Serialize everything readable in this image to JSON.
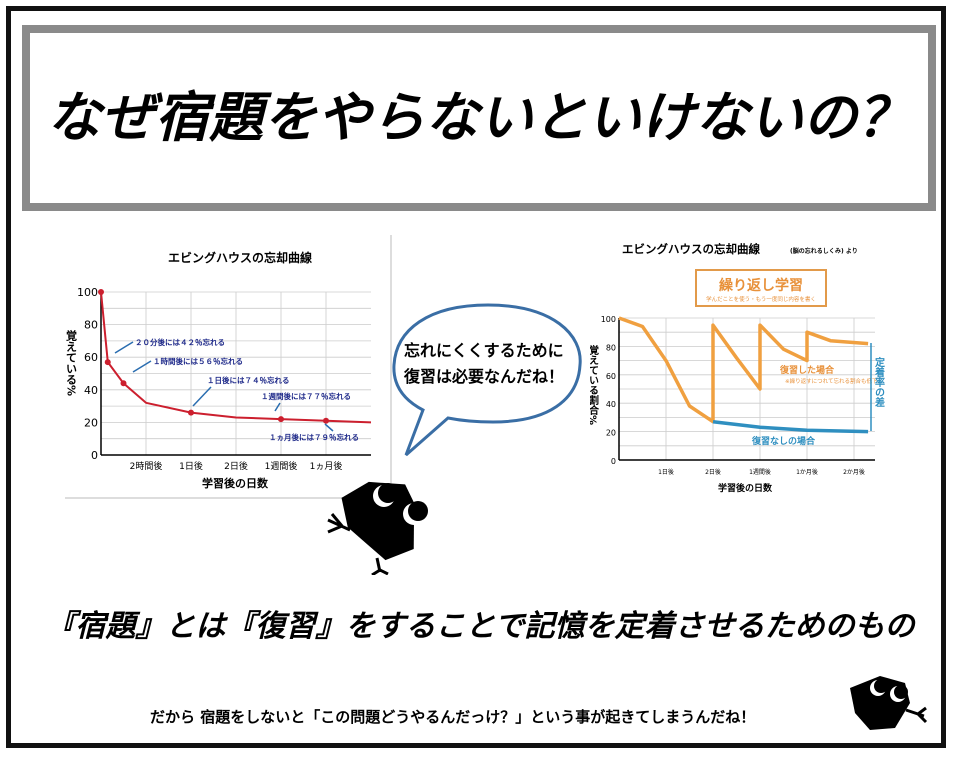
{
  "title": "なぜ宿題をやらないといけないの？",
  "speech_bubble": {
    "line1": "忘れにくくするために",
    "line2": "復習は必要なんだね！",
    "border_color": "#3a6ea5"
  },
  "heading": "『宿題』とは『復習』をすることで記憶を定着させるためのもの",
  "subtext": "だから 宿題をしないと「この問題どうやるんだっけ？」という事が起きてしまうんだね！",
  "chart_data": [
    {
      "type": "line",
      "title": "エビングハウスの忘却曲線",
      "xlabel": "学習後の日数",
      "ylabel": "覚えている%",
      "categories": [
        "2時間後",
        "1日後",
        "2日後",
        "1週間後",
        "1ヵ月後"
      ],
      "ylim": [
        0,
        100
      ],
      "yticks": [
        0,
        20,
        40,
        60,
        80,
        100
      ],
      "grid": true,
      "line_color": "#cc1f2e",
      "series": [
        {
          "points": [
            [
              0,
              100
            ],
            [
              0.15,
              57
            ],
            [
              0.5,
              44
            ],
            [
              1,
              32
            ],
            [
              2,
              26
            ],
            [
              3,
              23
            ],
            [
              4,
              22
            ],
            [
              5,
              21
            ],
            [
              6,
              20
            ]
          ],
          "markers": [
            [
              0,
              100
            ],
            [
              0.15,
              57
            ],
            [
              0.5,
              44
            ],
            [
              2,
              26
            ],
            [
              4,
              22
            ],
            [
              5,
              21
            ]
          ]
        }
      ],
      "annotations": [
        "２０分後には４２％忘れる",
        "１時間後には５６％忘れる",
        "１日後には７４％忘れる",
        "１週間後には７７％忘れる",
        "１ヵ月後には７９％忘れる"
      ],
      "annotation_color": "#1f2a8a"
    },
    {
      "type": "line",
      "title": "エビングハウスの忘却曲線",
      "title_note": "(脳の忘れるしくみ) より",
      "xlabel": "学習後の日数",
      "ylabel": "覚えている割合%",
      "categories": [
        "1日後",
        "2日後",
        "1週間後",
        "1か月後",
        "2か月後"
      ],
      "ylim": [
        0,
        100
      ],
      "yticks": [
        0,
        20,
        40,
        60,
        80,
        100
      ],
      "grid": true,
      "box_title": "繰り返し学習",
      "box_subtitle": "学んだことを使う・もう一度同じ内容を書く",
      "difference_label": "定着率の差",
      "series": [
        {
          "name": "復習した場合",
          "note": "※繰り返すにつれて忘れる割合も低下",
          "color": "#f0a040",
          "points": [
            [
              0,
              100
            ],
            [
              0.5,
              94
            ],
            [
              1,
              70
            ],
            [
              1.5,
              38
            ],
            [
              2,
              27
            ],
            [
              2,
              95
            ],
            [
              2.5,
              72
            ],
            [
              3,
              50
            ],
            [
              3,
              95
            ],
            [
              3.5,
              78
            ],
            [
              4,
              70
            ],
            [
              4,
              90
            ],
            [
              4.5,
              84
            ],
            [
              5.3,
              82
            ]
          ]
        },
        {
          "name": "復習なしの場合",
          "color": "#2f8fc0",
          "points": [
            [
              2,
              27
            ],
            [
              3,
              23
            ],
            [
              4,
              21
            ],
            [
              5.3,
              20
            ]
          ]
        }
      ]
    }
  ]
}
